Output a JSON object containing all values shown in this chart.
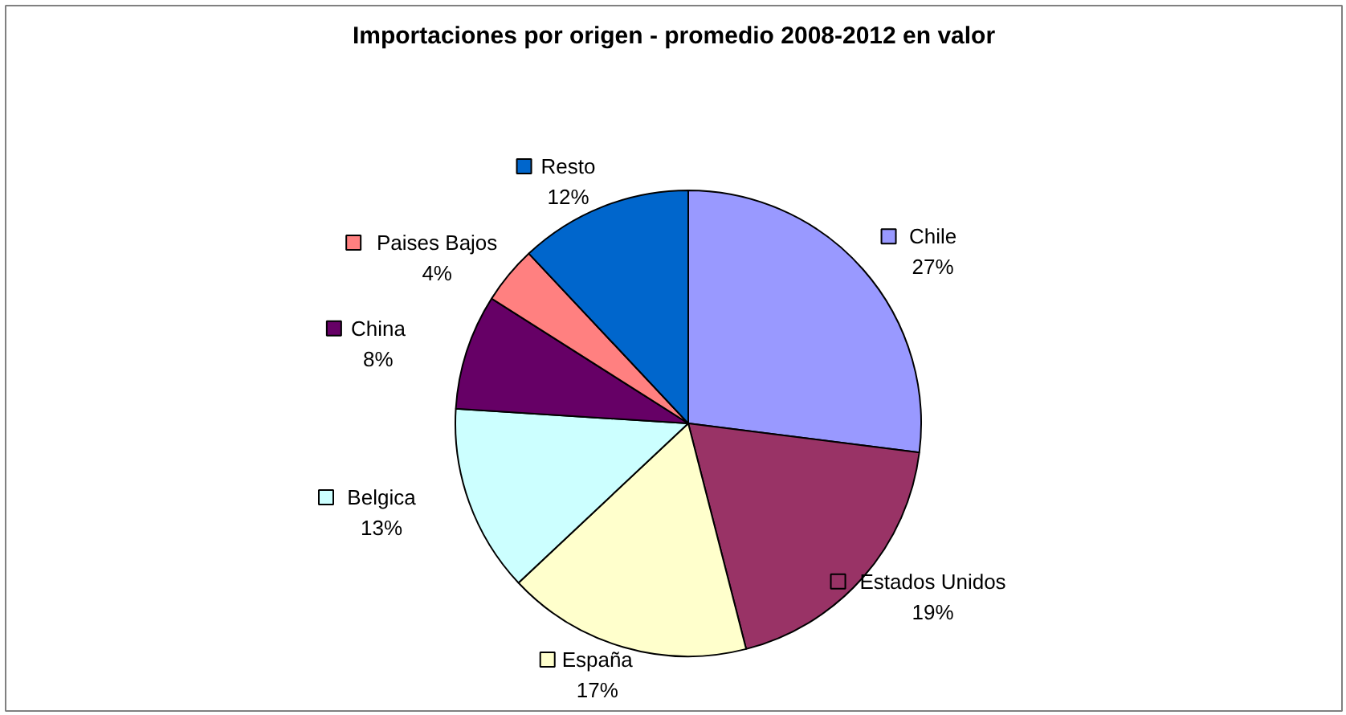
{
  "chart_data": {
    "type": "pie",
    "title": "Importaciones por origen - promedio 2008-2012 en valor",
    "categories": [
      "Chile",
      "Estados Unidos",
      "España",
      "Belgica",
      "China",
      "Paises Bajos",
      "Resto"
    ],
    "values": [
      27,
      19,
      17,
      13,
      8,
      4,
      12
    ],
    "value_labels": [
      "27%",
      "19%",
      "17%",
      "13%",
      "8%",
      "4%",
      "12%"
    ],
    "colors": [
      "#9999ff",
      "#993366",
      "#ffffcc",
      "#ccffff",
      "#660066",
      "#ff8080",
      "#0066cc"
    ],
    "legend": "center"
  }
}
